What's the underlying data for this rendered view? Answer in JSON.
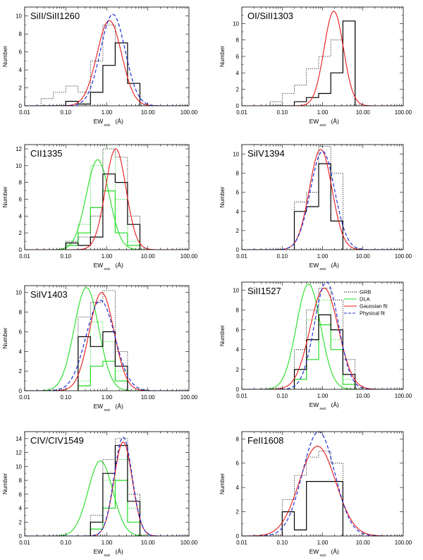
{
  "figure": {
    "colors": {
      "grb": "#000000",
      "dla": "#22dd22",
      "gauss": "#e8191a",
      "phys": "#1f2fd6"
    },
    "legend": {
      "items": [
        {
          "key": "grb_dotted",
          "label": "GRB",
          "style": "dotted",
          "color": "#000000"
        },
        {
          "key": "dla",
          "label": "DLA",
          "style": "solid",
          "color": "#22dd22"
        },
        {
          "key": "gauss",
          "label": "Gaussian fit",
          "style": "solid",
          "color": "#e8191a"
        },
        {
          "key": "phys",
          "label": "Physical fit",
          "style": "dashed",
          "color": "#1f2fd6"
        }
      ]
    }
  },
  "chart_data": [
    {
      "type": "histogram",
      "title": "SiII/SiII1260",
      "ylabel": "Number",
      "xlabel": "EW",
      "xlabel_sub": "rest",
      "xlabel_unit": "(Å)",
      "xscale": "log",
      "xlim": [
        0.01,
        100
      ],
      "ylim": [
        0,
        11
      ],
      "yticks": [
        0,
        2,
        4,
        6,
        8,
        10
      ],
      "xtick_labels": [
        "0.01",
        "0.10",
        "1.00",
        "10.00",
        "100.00"
      ],
      "edges": [
        0.025,
        0.05,
        0.1,
        0.2,
        0.4,
        0.8,
        1.6,
        3.2,
        6.4
      ],
      "grb_detected": [
        0,
        0,
        0.5,
        0.2,
        1.5,
        4.5,
        7,
        2.5
      ],
      "grb_total": [
        0.8,
        1.5,
        2.2,
        1.5,
        5,
        9,
        7,
        2.5
      ],
      "gaussian_fit": {
        "peak": 9.5,
        "center": 1.15,
        "sigma_dex": 0.3
      },
      "physical_fit": {
        "peak": 10.2,
        "center": 1.4,
        "sigma_dex": 0.3
      }
    },
    {
      "type": "histogram",
      "title": "OI/SiII1303",
      "ylabel": "Number",
      "xlabel": "EW",
      "xlabel_sub": "rest",
      "xlabel_unit": "(Å)",
      "xscale": "log",
      "xlim": [
        0.01,
        100
      ],
      "ylim": [
        0,
        12
      ],
      "yticks": [
        0,
        2,
        4,
        6,
        8,
        10
      ],
      "xtick_labels": [
        "0.01",
        "0.10",
        "1.00",
        "10.00",
        "100.00"
      ],
      "edges": [
        0.05,
        0.1,
        0.2,
        0.4,
        0.8,
        1.6,
        3.2,
        6.4
      ],
      "grb_detected": [
        0,
        0,
        0.5,
        1,
        1.5,
        4,
        10.3
      ],
      "grb_total": [
        0.5,
        1.5,
        2.5,
        4.5,
        6,
        8,
        10.3
      ],
      "gaussian_fit": {
        "peak": 11.5,
        "center": 1.9,
        "sigma_dex": 0.24
      }
    },
    {
      "type": "histogram",
      "title": "CII1335",
      "ylabel": "Number",
      "xlabel": "EW",
      "xlabel_sub": "rest",
      "xlabel_unit": "(Å)",
      "xscale": "log",
      "xlim": [
        0.01,
        100
      ],
      "ylim": [
        0,
        12.5
      ],
      "yticks": [
        0,
        2,
        4,
        6,
        8,
        10,
        12
      ],
      "xtick_labels": [
        "0.01",
        "0.10",
        "1.00",
        "10.00",
        "100.00"
      ],
      "edges": [
        0.1,
        0.2,
        0.4,
        0.8,
        1.6,
        3.2,
        6.4
      ],
      "grb_detected": [
        0.8,
        0.5,
        1.5,
        9,
        8,
        3
      ],
      "grb_total": [
        1,
        1.5,
        4,
        12,
        11,
        4
      ],
      "dla_detected": [
        0.5,
        2,
        5,
        7,
        2,
        0.5
      ],
      "dla_total": [
        1,
        3,
        10,
        12,
        6,
        1
      ],
      "gaussian_fit": {
        "peak": 12,
        "center": 1.65,
        "sigma_dex": 0.25
      },
      "dla_fit": {
        "peak": 10.7,
        "center": 0.6,
        "sigma_dex": 0.28
      }
    },
    {
      "type": "histogram",
      "title": "SiIV1394",
      "ylabel": "Number",
      "xlabel": "EW",
      "xlabel_sub": "rest",
      "xlabel_unit": "(Å)",
      "xscale": "log",
      "xlim": [
        0.01,
        100
      ],
      "ylim": [
        0,
        11
      ],
      "yticks": [
        0,
        2,
        4,
        6,
        8,
        10
      ],
      "xtick_labels": [
        "0.01",
        "0.10",
        "1.00",
        "10.00",
        "100.00"
      ],
      "edges": [
        0.2,
        0.4,
        0.8,
        1.6,
        3.2
      ],
      "grb_detected": [
        4,
        4.5,
        9,
        3
      ],
      "grb_total": [
        5,
        6,
        10.8,
        8
      ],
      "gaussian_fit": {
        "peak": 10.5,
        "center": 0.9,
        "sigma_dex": 0.28
      },
      "physical_fit": {
        "peak": 10.3,
        "center": 1.0,
        "sigma_dex": 0.3
      }
    },
    {
      "type": "histogram",
      "title": "SiIV1403",
      "ylabel": "Number",
      "xlabel": "EW",
      "xlabel_sub": "rest",
      "xlabel_unit": "(Å)",
      "xscale": "log",
      "xlim": [
        0.01,
        100
      ],
      "ylim": [
        0,
        10.7
      ],
      "yticks": [
        0,
        2,
        4,
        6,
        8,
        10
      ],
      "xtick_labels": [
        "0.01",
        "0.10",
        "1.00",
        "10.00",
        "100.00"
      ],
      "edges": [
        0.2,
        0.4,
        0.8,
        1.6,
        3.2
      ],
      "grb_detected": [
        5.5,
        4.5,
        6,
        2.5
      ],
      "grb_total": [
        7.5,
        9,
        10.2,
        4
      ],
      "dla_detected": [
        0.5,
        2.5,
        3,
        1
      ],
      "dla_total": [
        1,
        7,
        5,
        2
      ],
      "gaussian_fit": {
        "peak": 10,
        "center": 0.75,
        "sigma_dex": 0.3
      },
      "physical_fit": {
        "peak": 9.2,
        "center": 0.7,
        "sigma_dex": 0.35
      },
      "dla_fit": {
        "peak": 10.5,
        "center": 0.32,
        "sigma_dex": 0.3
      }
    },
    {
      "type": "histogram",
      "title": "SiII1527",
      "ylabel": "Number",
      "xlabel": "EW",
      "xlabel_sub": "rest",
      "xlabel_unit": "(Å)",
      "xscale": "log",
      "xlim": [
        0.01,
        100
      ],
      "ylim": [
        0,
        10.8
      ],
      "yticks": [
        0,
        2,
        4,
        6,
        8,
        10
      ],
      "xtick_labels": [
        "0.01",
        "0.10",
        "1.00",
        "10.00",
        "100.00"
      ],
      "edges": [
        0.2,
        0.4,
        0.8,
        1.6,
        3.2,
        6.4
      ],
      "grb_detected": [
        2,
        5,
        7.5,
        6,
        1.5
      ],
      "grb_total": [
        4,
        8,
        10.2,
        9,
        3
      ],
      "dla_detected": [
        1,
        3,
        6.5,
        4,
        0.5
      ],
      "dla_total": [
        2,
        7,
        9,
        5,
        1
      ],
      "gaussian_fit": {
        "peak": 10.2,
        "center": 1.1,
        "sigma_dex": 0.35
      },
      "physical_fit": {
        "peak": 10.8,
        "center": 1.25,
        "sigma_dex": 0.3
      },
      "dla_fit": {
        "peak": 10.6,
        "center": 0.45,
        "sigma_dex": 0.3
      }
    },
    {
      "type": "histogram",
      "title": "CIV/CIV1549",
      "ylabel": "Number",
      "xlabel": "EW",
      "xlabel_sub": "rest",
      "xlabel_unit": "(Å)",
      "xscale": "log",
      "xlim": [
        0.01,
        100
      ],
      "ylim": [
        0,
        15
      ],
      "yticks": [
        0,
        2,
        4,
        6,
        8,
        10,
        12,
        14
      ],
      "xtick_labels": [
        "0.01",
        "0.10",
        "1.00",
        "10.00",
        "100.00"
      ],
      "edges": [
        0.4,
        0.8,
        1.6,
        3.2,
        6.4
      ],
      "grb_detected": [
        2,
        9,
        13,
        5
      ],
      "grb_total": [
        3,
        11,
        14,
        6
      ],
      "dla_detected": [
        1,
        4,
        8,
        2
      ],
      "dla_total": [
        2,
        8,
        11,
        4
      ],
      "gaussian_fit": {
        "peak": 13.5,
        "center": 2.5,
        "sigma_dex": 0.22
      },
      "physical_fit": {
        "peak": 14.2,
        "center": 2.5,
        "sigma_dex": 0.22
      },
      "dla_fit": {
        "peak": 10.8,
        "center": 0.7,
        "sigma_dex": 0.3
      }
    },
    {
      "type": "histogram",
      "title": "FeII1608",
      "ylabel": "Number",
      "xlabel": "EW",
      "xlabel_sub": "rest",
      "xlabel_unit": "(Å)",
      "xscale": "log",
      "xlim": [
        0.01,
        100
      ],
      "ylim": [
        0,
        8.6
      ],
      "yticks": [
        0,
        2,
        4,
        6,
        8
      ],
      "xtick_labels": [
        "0.01",
        "0.10",
        "1.00",
        "10.00",
        "100.00"
      ],
      "edges": [
        0.1,
        0.2,
        0.4,
        0.8,
        1.6,
        3.2
      ],
      "grb_detected": [
        2,
        0.5,
        4.5,
        4.5,
        4.5
      ],
      "grb_total": [
        3,
        5,
        6.5,
        7,
        6
      ],
      "gaussian_fit": {
        "peak": 7.4,
        "center": 0.75,
        "sigma_dex": 0.45
      },
      "physical_fit": {
        "peak": 8.6,
        "center": 0.8,
        "sigma_dex": 0.4
      }
    }
  ]
}
